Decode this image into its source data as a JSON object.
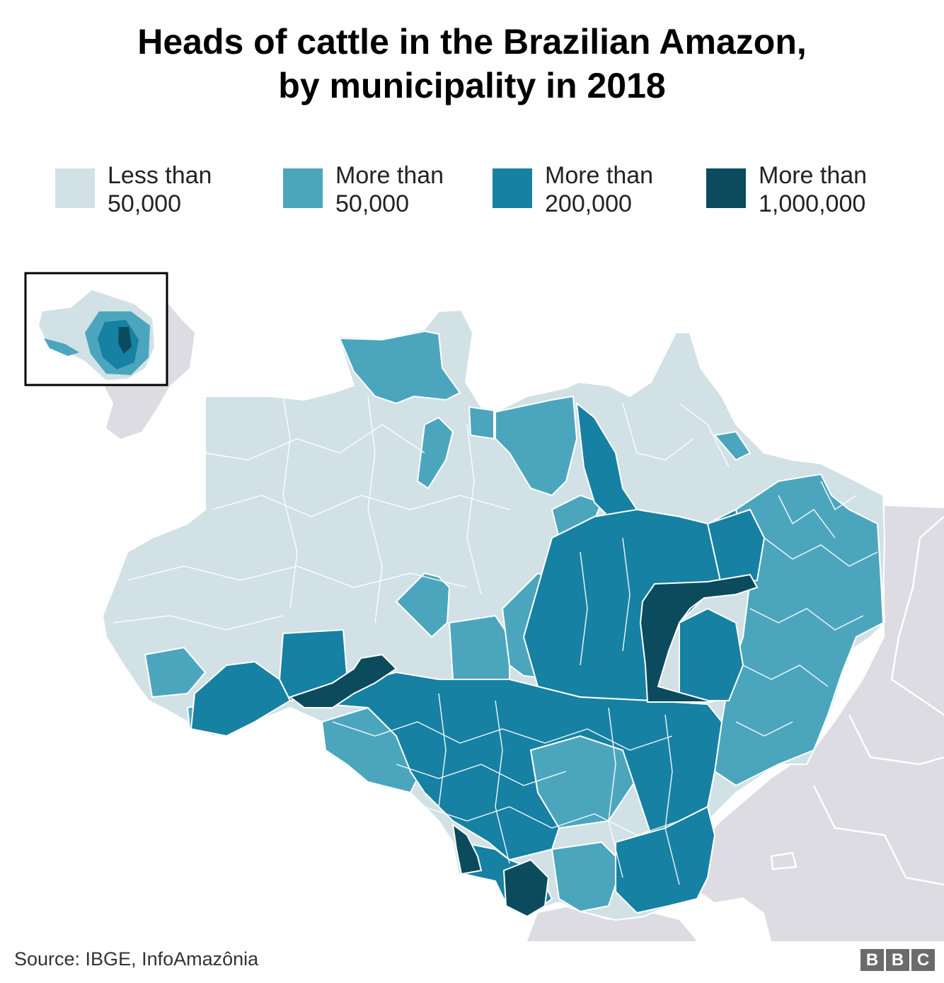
{
  "title": {
    "line1": "Heads of cattle in the Brazilian Amazon,",
    "line2": "by municipality in 2018"
  },
  "legend": [
    {
      "line1": "Less than",
      "line2": "50,000",
      "color": "#d1e1e6"
    },
    {
      "line1": "More than",
      "line2": "50,000",
      "color": "#4ba6bd"
    },
    {
      "line1": "More than",
      "line2": "200,000",
      "color": "#1681a2"
    },
    {
      "line1": "More than",
      "line2": "1,000,000",
      "color": "#0c4b5e"
    }
  ],
  "source": "Source: IBGE, InfoAmazônia",
  "logo": {
    "letters": [
      "B",
      "B",
      "C"
    ]
  },
  "colors": {
    "neighbor_land": "#dcdce2",
    "borders": "#ffffff",
    "inset_frame": "#000000"
  }
}
